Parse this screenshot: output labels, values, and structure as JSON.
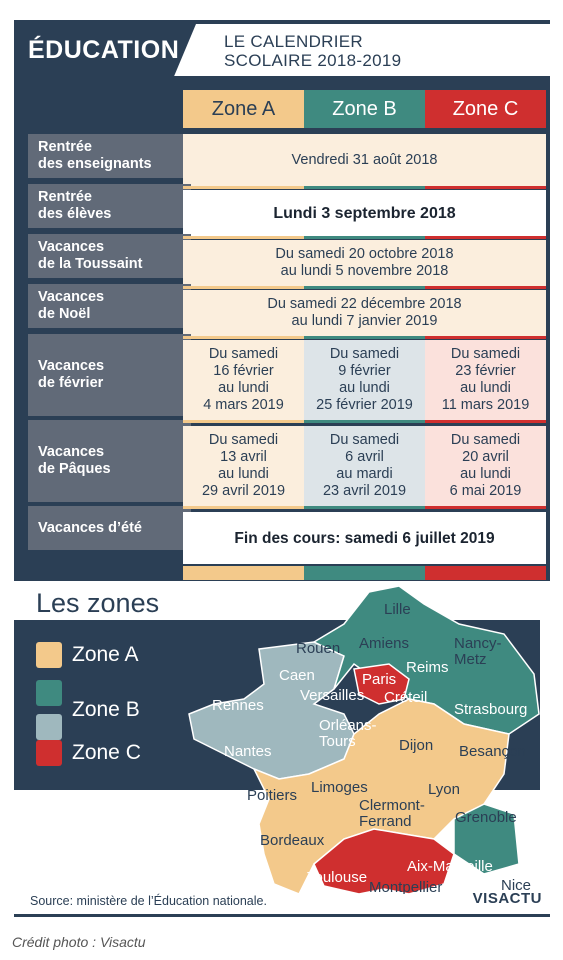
{
  "header": {
    "section": "ÉDUCATION",
    "title_line1": "LE CALENDRIER",
    "title_line2": "SCOLAIRE 2018-2019"
  },
  "zones": [
    "Zone A",
    "Zone B",
    "Zone C"
  ],
  "rows": [
    {
      "label": "Rentrée\ndes enseignants",
      "all": "Vendredi 31 août 2018"
    },
    {
      "label": "Rentrée\ndes élèves",
      "all": "Lundi 3 septembre 2018"
    },
    {
      "label": "Vacances\nde la Toussaint",
      "all": "Du samedi 20 octobre 2018\nau lundi 5 novembre 2018"
    },
    {
      "label": "Vacances\nde Noël",
      "all": "Du samedi 22 décembre 2018\nau lundi 7 janvier 2019"
    },
    {
      "label": "Vacances\nde février",
      "a": "Du samedi\n16 février\nau lundi\n4 mars 2019",
      "b": "Du samedi\n9 février\nau lundi\n25 février 2019",
      "c": "Du samedi\n23 février\nau lundi\n11 mars 2019"
    },
    {
      "label": "Vacances\nde Pâques",
      "a": "Du samedi\n13 avril\nau lundi\n29 avril 2019",
      "b": "Du samedi\n6 avril\nau mardi\n23 avril 2019",
      "c": "Du samedi\n20 avril\nau lundi\n6 mai 2019"
    },
    {
      "label": "Vacances d’été",
      "all": "Fin des cours: samedi 6 juillet 2019"
    }
  ],
  "zones_section": {
    "title": "Les zones",
    "legend": [
      "Zone A",
      "Zone B",
      "Zone C"
    ]
  },
  "cities": {
    "lille": "Lille",
    "rouen": "Rouen",
    "amiens": "Amiens",
    "nancy_metz": "Nancy-\nMetz",
    "caen": "Caen",
    "paris": "Paris",
    "reims": "Reims",
    "versailles": "Versailles",
    "creteil": "Créteil",
    "rennes": "Rennes",
    "strasbourg": "Strasbourg",
    "orleans_tours": "Orléans-\nTours",
    "nantes": "Nantes",
    "dijon": "Dijon",
    "besancon": "Besançon",
    "poitiers": "Poitiers",
    "limoges": "Limoges",
    "lyon": "Lyon",
    "clermont": "Clermont-\nFerrand",
    "grenoble": "Grenoble",
    "bordeaux": "Bordeaux",
    "aix_marseille": "Aix-Marseille",
    "toulouse": "Toulouse",
    "nice": "Nice",
    "montpellier": "Montpellier"
  },
  "footer": {
    "source": "Source: ministère de l’Éducation nationale.",
    "brand": "VISACTU",
    "credit": "Crédit photo : Visactu"
  },
  "colors": {
    "navy": "#2b3f55",
    "zone_a": "#f3c98b",
    "zone_b_dark": "#3f8a80",
    "zone_b_light": "#9fb8be",
    "zone_c": "#cf2f2f"
  }
}
